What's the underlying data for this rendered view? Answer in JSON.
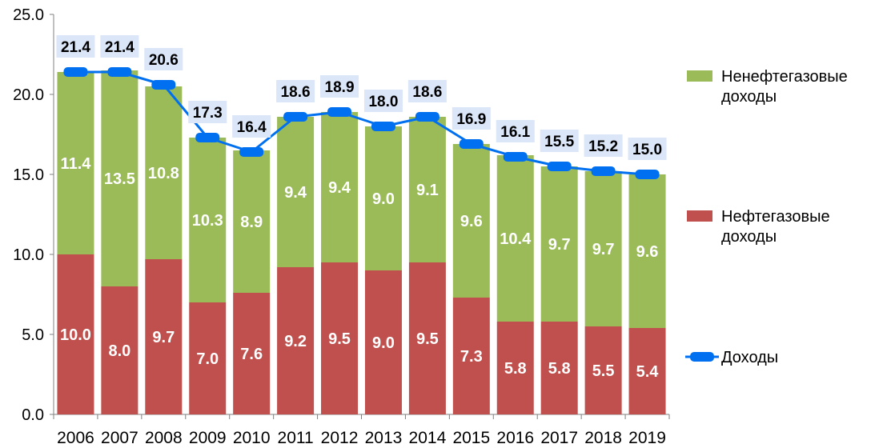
{
  "chart_data": {
    "type": "bar",
    "stacked": true,
    "title": "",
    "xlabel": "",
    "ylabel": "",
    "ylim": [
      0,
      25
    ],
    "yticks": [
      "0.0",
      "5.0",
      "10.0",
      "15.0",
      "20.0",
      "25.0"
    ],
    "categories": [
      "2006",
      "2007",
      "2008",
      "2009",
      "2010",
      "2011",
      "2012",
      "2013",
      "2014",
      "2015",
      "2016",
      "2017",
      "2018",
      "2019"
    ],
    "series": [
      {
        "name": "Нефтегазовые доходы",
        "kind": "bar",
        "color": "#c0504d",
        "values": [
          10.0,
          8.0,
          9.7,
          7.0,
          7.6,
          9.2,
          9.5,
          9.0,
          9.5,
          7.3,
          5.8,
          5.8,
          5.5,
          5.4
        ],
        "labels": [
          "10.0",
          "8.0",
          "9.7",
          "7.0",
          "7.6",
          "9.2",
          "9.5",
          "9.0",
          "9.5",
          "7.3",
          "5.8",
          "5.8",
          "5.5",
          "5.4"
        ]
      },
      {
        "name": "Ненефтегазовые доходы",
        "kind": "bar",
        "color": "#9bbb59",
        "values": [
          11.4,
          13.5,
          10.8,
          10.3,
          8.9,
          9.4,
          9.4,
          9.0,
          9.1,
          9.6,
          10.4,
          9.7,
          9.7,
          9.6
        ],
        "labels": [
          "11.4",
          "13.5",
          "10.8",
          "10.3",
          "8.9",
          "9.4",
          "9.4",
          "9.0",
          "9.1",
          "9.6",
          "10.4",
          "9.7",
          "9.7",
          "9.6"
        ]
      },
      {
        "name": "Доходы",
        "kind": "line",
        "color": "#0070f0",
        "values": [
          21.4,
          21.4,
          20.6,
          17.3,
          16.4,
          18.6,
          18.9,
          18.0,
          18.6,
          16.9,
          16.1,
          15.5,
          15.2,
          15.0
        ],
        "labels": [
          "21.4",
          "21.4",
          "20.6",
          "17.3",
          "16.4",
          "18.6",
          "18.9",
          "18.0",
          "18.6",
          "16.9",
          "16.1",
          "15.5",
          "15.2",
          "15.0"
        ]
      }
    ],
    "legend": {
      "placement": "right",
      "items": [
        {
          "line1": "Ненефтегазовые",
          "line2": "доходы",
          "color": "#9bbb59",
          "kind": "bar"
        },
        {
          "line1": "Нефтегазовые",
          "line2": "доходы",
          "color": "#c0504d",
          "kind": "bar"
        },
        {
          "line1": "Доходы",
          "line2": "",
          "color": "#0070f0",
          "kind": "line"
        }
      ]
    },
    "grid": false,
    "label_box_color": "#dbe6f9"
  }
}
